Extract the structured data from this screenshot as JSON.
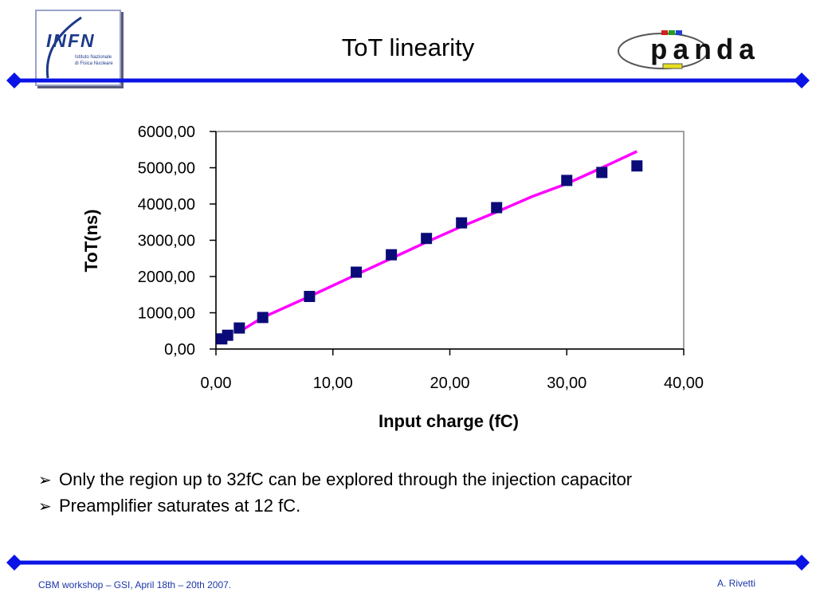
{
  "slide": {
    "title": "ToT linearity",
    "logo_left": {
      "icon": "infn-logo",
      "word": "INFN",
      "line1": "Istituto Nazionale",
      "line2": "di Fisica Nucleare"
    },
    "logo_right": {
      "icon": "panda-logo",
      "word": "panda"
    },
    "accent_color": "#0a14e6",
    "bullets": [
      "Only the region up to 32fC can be explored through the injection capacitor",
      "Preamplifier saturates at 12 fC."
    ],
    "bullet_symbol": "➢",
    "footer_left": "CBM workshop – GSI, April 18th – 20th 2007.",
    "footer_right": "A. Rivetti"
  },
  "chart_data": {
    "type": "scatter",
    "xlabel": "Input charge (fC)",
    "ylabel": "ToT(ns)",
    "xlim": [
      0,
      40
    ],
    "ylim": [
      0,
      6000
    ],
    "xticks": [
      "0,00",
      "10,00",
      "20,00",
      "30,00",
      "40,00"
    ],
    "yticks": [
      "0,00",
      "1000,00",
      "2000,00",
      "3000,00",
      "4000,00",
      "5000,00",
      "6000,00"
    ],
    "grid": false,
    "series": [
      {
        "kind": "points",
        "color": "#0a0a78",
        "x": [
          0.5,
          1,
          2,
          4,
          8,
          12,
          15,
          18,
          21,
          24,
          30,
          33,
          36
        ],
        "y": [
          280,
          380,
          580,
          870,
          1450,
          2120,
          2600,
          3050,
          3480,
          3900,
          4650,
          4870,
          5050
        ]
      },
      {
        "kind": "line",
        "color": "#ff00ff",
        "x": [
          2,
          4,
          8,
          12,
          15,
          18,
          21,
          24,
          27,
          30,
          33,
          36
        ],
        "y": [
          480,
          870,
          1450,
          2050,
          2500,
          2950,
          3380,
          3780,
          4200,
          4560,
          5000,
          5450
        ]
      }
    ]
  }
}
